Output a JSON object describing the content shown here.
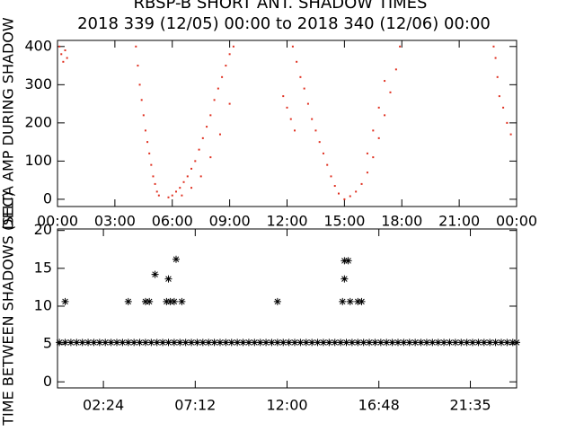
{
  "chart_data": [
    {
      "type": "scatter",
      "title": "RBSP-B SHORT ANT. SHADOW TIMES",
      "subtitle": "2018 339 (12/05) 00:00 to 2018 340 (12/06) 00:00",
      "ylabel": "DELTA AMP DURING SHADOW",
      "color": "#e03020",
      "xlim": [
        0,
        24
      ],
      "ylim": [
        -19,
        416
      ],
      "xticks": [
        {
          "value": 0,
          "label": "00:00"
        },
        {
          "value": 3,
          "label": "03:00"
        },
        {
          "value": 6,
          "label": "06:00"
        },
        {
          "value": 9,
          "label": "09:00"
        },
        {
          "value": 12,
          "label": "12:00"
        },
        {
          "value": 15,
          "label": "15:00"
        },
        {
          "value": 18,
          "label": "18:00"
        },
        {
          "value": 21,
          "label": "21:00"
        },
        {
          "value": 24,
          "label": "00:00"
        }
      ],
      "yticks": [
        0,
        100,
        200,
        300,
        400
      ],
      "x": [
        0.1,
        0.2,
        0.3,
        0.4,
        0.5,
        4.1,
        4.2,
        4.3,
        4.4,
        4.5,
        4.6,
        4.7,
        4.8,
        4.9,
        5.0,
        5.1,
        5.2,
        5.3,
        5.8,
        6.0,
        6.2,
        6.4,
        6.6,
        6.8,
        7.0,
        7.2,
        7.4,
        7.6,
        7.8,
        8.0,
        8.2,
        8.4,
        8.6,
        8.8,
        9.0,
        9.2,
        6.5,
        7.0,
        7.5,
        8.0,
        8.5,
        9.0,
        12.3,
        12.5,
        12.7,
        12.9,
        13.1,
        13.3,
        13.5,
        13.7,
        13.9,
        14.1,
        14.3,
        14.5,
        14.7,
        11.8,
        12.0,
        12.2,
        12.4,
        15.0,
        15.3,
        15.6,
        15.9,
        16.2,
        16.5,
        16.8,
        17.1,
        17.4,
        17.7,
        17.9,
        16.2,
        16.5,
        16.8,
        17.1,
        22.8,
        22.9,
        23.0,
        23.1,
        23.3,
        23.5,
        23.7
      ],
      "y": [
        400,
        380,
        360,
        390,
        370,
        400,
        350,
        300,
        260,
        220,
        180,
        150,
        120,
        90,
        60,
        40,
        20,
        10,
        5,
        10,
        20,
        30,
        45,
        60,
        80,
        100,
        130,
        160,
        190,
        220,
        260,
        290,
        320,
        350,
        380,
        400,
        10,
        30,
        60,
        110,
        170,
        250,
        400,
        360,
        320,
        290,
        250,
        210,
        180,
        150,
        120,
        90,
        60,
        35,
        15,
        270,
        240,
        210,
        180,
        0,
        8,
        20,
        40,
        70,
        110,
        160,
        220,
        280,
        340,
        400,
        120,
        180,
        240,
        310,
        400,
        370,
        320,
        270,
        240,
        200,
        170
      ]
    },
    {
      "type": "scatter",
      "ylabel": "TIME BETWEEN SHADOWS (SEC)",
      "color": "#000000",
      "xlim": [
        0,
        24
      ],
      "ylim": [
        -0.8,
        20.2
      ],
      "xticks": [
        {
          "value": 2.4,
          "label": "02:24"
        },
        {
          "value": 7.2,
          "label": "07:12"
        },
        {
          "value": 12,
          "label": "12:00"
        },
        {
          "value": 16.8,
          "label": "16:48"
        },
        {
          "value": 21.583,
          "label": "21:35"
        }
      ],
      "yticks": [
        0,
        5,
        10,
        15,
        20
      ],
      "x": [
        0.1,
        0.4,
        0.7,
        1.0,
        1.3,
        1.6,
        1.9,
        2.2,
        2.5,
        2.8,
        3.1,
        3.4,
        3.7,
        4.0,
        4.3,
        4.6,
        4.9,
        5.2,
        5.5,
        5.8,
        6.1,
        6.4,
        6.7,
        7.0,
        7.3,
        7.6,
        7.9,
        8.2,
        8.5,
        8.8,
        9.1,
        9.4,
        9.7,
        10.0,
        10.3,
        10.6,
        10.9,
        11.2,
        11.5,
        11.8,
        12.1,
        12.4,
        12.7,
        13.0,
        13.3,
        13.6,
        13.9,
        14.2,
        14.5,
        14.8,
        15.1,
        15.4,
        15.7,
        16.0,
        16.3,
        16.6,
        16.9,
        17.2,
        17.5,
        17.8,
        18.1,
        18.4,
        18.7,
        19.0,
        19.3,
        19.6,
        19.9,
        20.2,
        20.5,
        20.8,
        21.1,
        21.4,
        21.7,
        22.0,
        22.3,
        22.6,
        22.9,
        23.2,
        23.5,
        23.8,
        0.4,
        3.7,
        4.6,
        4.8,
        5.1,
        5.7,
        5.8,
        5.9,
        6.1,
        6.2,
        6.5,
        11.5,
        14.9,
        15.0,
        15.0,
        15.2,
        15.3,
        15.7,
        15.9,
        24.0
      ],
      "y": [
        5.2,
        5.2,
        5.2,
        5.2,
        5.2,
        5.2,
        5.2,
        5.2,
        5.2,
        5.2,
        5.2,
        5.2,
        5.2,
        5.2,
        5.2,
        5.2,
        5.2,
        5.2,
        5.2,
        5.2,
        5.2,
        5.2,
        5.2,
        5.2,
        5.2,
        5.2,
        5.2,
        5.2,
        5.2,
        5.2,
        5.2,
        5.2,
        5.2,
        5.2,
        5.2,
        5.2,
        5.2,
        5.2,
        5.2,
        5.2,
        5.2,
        5.2,
        5.2,
        5.2,
        5.2,
        5.2,
        5.2,
        5.2,
        5.2,
        5.2,
        5.2,
        5.2,
        5.2,
        5.2,
        5.2,
        5.2,
        5.2,
        5.2,
        5.2,
        5.2,
        5.2,
        5.2,
        5.2,
        5.2,
        5.2,
        5.2,
        5.2,
        5.2,
        5.2,
        5.2,
        5.2,
        5.2,
        5.2,
        5.2,
        5.2,
        5.2,
        5.2,
        5.2,
        5.2,
        5.2,
        10.6,
        10.6,
        10.6,
        10.6,
        14.2,
        10.6,
        13.6,
        10.6,
        10.6,
        16.2,
        10.6,
        10.6,
        10.6,
        13.6,
        16.0,
        16.0,
        10.6,
        10.6,
        10.6,
        5.2
      ]
    }
  ]
}
